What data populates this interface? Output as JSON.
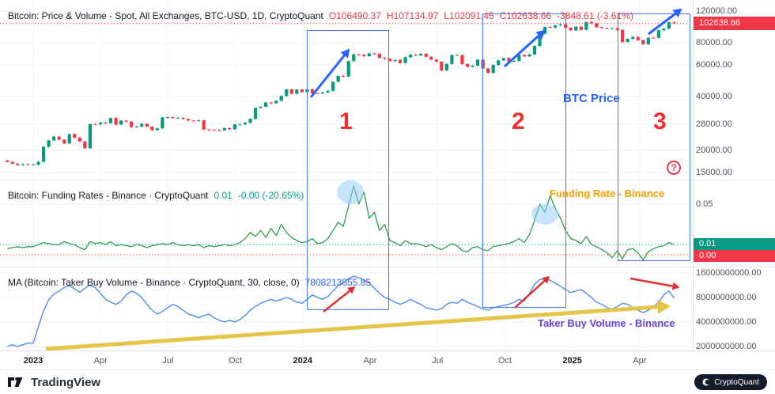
{
  "price_pane": {
    "title": "Bitcoin: Price & Volume - Spot, All Exchanges, BTC-USD, 1D, CryptoQuant",
    "o": "O106490.37",
    "h": "H107134.97",
    "l": "L102091.45",
    "c": "C102638.66",
    "chg": "-3848.61 (-3.61%)",
    "label": "BTC Price",
    "badge": "102638.66"
  },
  "funding_pane": {
    "title": "Bitcoin: Funding Rates - Binance · CryptoQuant",
    "value": "0.01",
    "chg": "-0.00 (-20.65%)",
    "label": "Funding Rate - Binance",
    "badge_hi": "0.01",
    "badge_lo": "0.00"
  },
  "volume_pane": {
    "title": "MA (Bitcoin: Taker Buy Volume - Binance · CryptoQuant, 30, close, 0)",
    "value": "7808213855.85",
    "label": "Taker Buy Volume - Binance"
  },
  "annotations": {
    "n1": "1",
    "n2": "2",
    "n3": "3",
    "help": "?"
  },
  "axes": {
    "price_ticks": [
      {
        "label": "120000.00",
        "v": 120000
      },
      {
        "label": "80000.00",
        "v": 80000
      },
      {
        "label": "60000.00",
        "v": 60000
      },
      {
        "label": "40000.00",
        "v": 40000
      },
      {
        "label": "28000.00",
        "v": 28000
      },
      {
        "label": "20000.00",
        "v": 20000
      },
      {
        "label": "15000.00",
        "v": 15000
      }
    ],
    "funding_ticks": [
      {
        "label": "0.05",
        "v": 0.05
      }
    ],
    "volume_ticks": [
      {
        "label": "16000000000.00",
        "b": 16
      },
      {
        "label": "8000000000.00",
        "b": 8
      },
      {
        "label": "4000000000.00",
        "b": 4
      },
      {
        "label": "2000000000.00",
        "b": 2
      }
    ],
    "time_ticks": [
      {
        "label": "2023",
        "m": 0,
        "year": true
      },
      {
        "label": "Apr",
        "m": 3
      },
      {
        "label": "Jul",
        "m": 6
      },
      {
        "label": "Oct",
        "m": 9
      },
      {
        "label": "2024",
        "m": 12,
        "year": true
      },
      {
        "label": "Apr",
        "m": 15
      },
      {
        "label": "Jul",
        "m": 18
      },
      {
        "label": "Oct",
        "m": 21
      },
      {
        "label": "2025",
        "m": 24,
        "year": true
      },
      {
        "label": "Apr",
        "m": 27
      }
    ]
  },
  "footer": {
    "brand": "TradingView",
    "attribution": "CryptoQuant"
  },
  "colors": {
    "up": "#089981",
    "down": "#f23645",
    "funding": "#2e9e4f",
    "volume": "#4e8cef",
    "accent_blue": "#2962ff",
    "accent_red": "#e03131",
    "accent_orange": "#f59f00",
    "accent_purple": "#6741d9",
    "accent_yellow": "#e5c44a",
    "grid": "#f1f3f8"
  },
  "chart_data": [
    {
      "type": "candlestick",
      "name": "BTC-USD price, 1D, log scale (weekly approximation, Dec 2022 - May 2025)",
      "ylim": [
        14000,
        125000
      ],
      "yticks": [
        15000,
        20000,
        28000,
        40000,
        60000,
        80000,
        120000
      ],
      "last": 102638.66,
      "close": [
        17200,
        16800,
        16500,
        16700,
        16600,
        16600,
        17200,
        20900,
        22700,
        23800,
        22900,
        21800,
        24600,
        23500,
        22400,
        20500,
        28000,
        27900,
        28500,
        28300,
        30300,
        27800,
        29300,
        28900,
        26900,
        27100,
        28100,
        27100,
        25900,
        26500,
        30500,
        30600,
        30300,
        30300,
        29900,
        29300,
        29100,
        29400,
        26100,
        26000,
        25900,
        25800,
        26600,
        26200,
        27900,
        27900,
        28500,
        30000,
        34500,
        35000,
        37000,
        36600,
        37800,
        40200,
        43800,
        41400,
        43700,
        42300,
        43900,
        41700,
        41600,
        42100,
        43000,
        48300,
        52100,
        51700,
        63100,
        68900,
        68400,
        67200,
        69600,
        69400,
        65700,
        64900,
        63100,
        64000,
        61500,
        66300,
        68500,
        67800,
        69300,
        66700,
        64300,
        62700,
        55900,
        60800,
        68200,
        68300,
        60700,
        58700,
        59500,
        64300,
        57300,
        54200,
        60000,
        63600,
        65600,
        62800,
        63200,
        68400,
        67000,
        68700,
        76700,
        89800,
        98000,
        97200,
        99900,
        101400,
        97000,
        93700,
        98300,
        94500,
        104500,
        102600,
        97700,
        96500,
        96100,
        96300,
        94300,
        80700,
        84000,
        86100,
        82600,
        78400,
        85300,
        85200,
        94000,
        95900,
        104100,
        102638.66
      ]
    },
    {
      "type": "line",
      "name": "Funding Rates - Binance (weekly approximation)",
      "ylim": [
        -0.01,
        0.07
      ],
      "yticks": [
        0,
        0.01,
        0.05
      ],
      "last": 0.01,
      "values": [
        0.006,
        0.007,
        0.008,
        0.007,
        0.008,
        0.008,
        0.01,
        0.012,
        0.011,
        0.01,
        0.01,
        0.013,
        0.011,
        0.01,
        0.007,
        0.005,
        0.013,
        0.011,
        0.012,
        0.01,
        0.013,
        0.009,
        0.01,
        0.009,
        0.008,
        0.01,
        0.009,
        0.007,
        0.009,
        0.01,
        0.011,
        0.01,
        0.012,
        0.01,
        0.009,
        0.01,
        0.009,
        0.01,
        0.007,
        0.009,
        0.008,
        0.009,
        0.01,
        0.009,
        0.01,
        0.012,
        0.016,
        0.022,
        0.018,
        0.024,
        0.017,
        0.026,
        0.019,
        0.03,
        0.022,
        0.017,
        0.014,
        0.012,
        0.013,
        0.016,
        0.011,
        0.012,
        0.016,
        0.024,
        0.032,
        0.028,
        0.048,
        0.068,
        0.05,
        0.062,
        0.036,
        0.042,
        0.024,
        0.03,
        0.014,
        0.012,
        0.009,
        0.014,
        0.011,
        0.011,
        0.01,
        0.008,
        0.01,
        0.007,
        0.005,
        0.008,
        0.011,
        0.009,
        0.004,
        0.003,
        0.007,
        0.008,
        0.005,
        0.004,
        0.008,
        0.009,
        0.01,
        0.011,
        0.013,
        0.016,
        0.012,
        0.02,
        0.034,
        0.05,
        0.042,
        0.058,
        0.046,
        0.036,
        0.024,
        0.016,
        0.014,
        0.011,
        0.018,
        0.01,
        0.008,
        0.005,
        0.002,
        -0.003,
        0.004,
        -0.004,
        0.005,
        0.006,
        0.002,
        -0.005,
        0.003,
        0.006,
        0.008,
        0.009,
        0.012,
        0.01
      ]
    },
    {
      "type": "line",
      "name": "Taker Buy Volume MA(30) - Binance, log scale (billions USD, weekly approximation)",
      "ylim_billions": [
        1.8,
        17
      ],
      "yticks_billions": [
        2,
        4,
        8,
        16
      ],
      "last": 7808213855.85,
      "values_billions": [
        2.0,
        2.1,
        2.0,
        2.1,
        2.2,
        2.2,
        3.5,
        5.5,
        7.5,
        8.8,
        9.6,
        10.6,
        11.2,
        10.2,
        9.2,
        10.4,
        11.4,
        10.6,
        9.0,
        7.6,
        7.0,
        6.6,
        7.2,
        8.6,
        9.6,
        9.0,
        8.0,
        6.6,
        5.6,
        5.0,
        5.4,
        6.0,
        6.6,
        6.2,
        5.6,
        5.0,
        4.8,
        4.5,
        4.8,
        5.0,
        4.5,
        4.2,
        4.0,
        4.2,
        4.0,
        4.3,
        4.8,
        5.6,
        6.2,
        6.8,
        7.2,
        7.6,
        7.2,
        7.6,
        8.0,
        7.6,
        7.0,
        6.8,
        7.6,
        8.6,
        8.0,
        7.6,
        8.2,
        9.6,
        11.2,
        12.2,
        13.6,
        14.6,
        14.0,
        13.0,
        12.0,
        10.4,
        9.0,
        8.0,
        7.6,
        7.0,
        6.6,
        7.0,
        7.6,
        7.0,
        6.6,
        6.0,
        5.8,
        5.6,
        5.8,
        6.6,
        7.0,
        6.8,
        7.6,
        7.0,
        6.6,
        6.2,
        5.8,
        5.6,
        6.0,
        6.2,
        6.4,
        6.6,
        7.0,
        7.6,
        7.2,
        9.0,
        11.6,
        13.2,
        13.6,
        13.0,
        12.0,
        11.0,
        10.0,
        9.2,
        9.6,
        10.0,
        9.0,
        8.0,
        7.0,
        6.6,
        6.0,
        5.8,
        6.2,
        6.8,
        6.6,
        6.0,
        5.6,
        5.2,
        5.6,
        6.2,
        7.0,
        8.6,
        9.6,
        7.8
      ]
    }
  ]
}
